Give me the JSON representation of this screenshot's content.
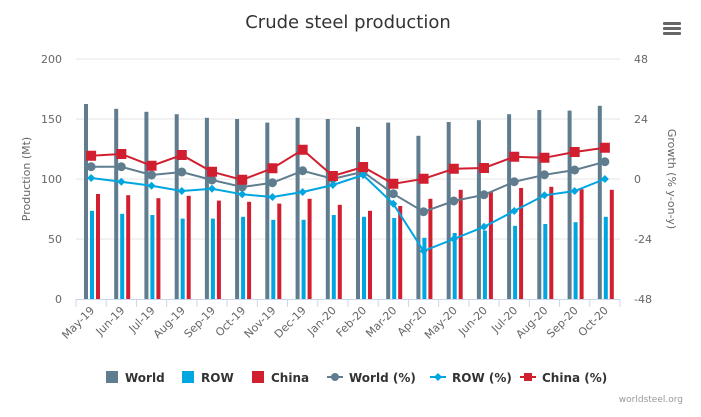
{
  "chart_data": {
    "type": "bar",
    "title": "Crude steel production",
    "xlabel": "",
    "ylabel": "Production (Mt)",
    "y2label": "Growth (% y-on-y)",
    "ylim": [
      0,
      200
    ],
    "y2lim": [
      -48,
      48
    ],
    "yticks": [
      "0",
      "50",
      "100",
      "150",
      "200"
    ],
    "y2ticks": [
      "-48",
      "-24",
      "0",
      "24",
      "48"
    ],
    "grid": true,
    "legend_position": "bottom",
    "categories": [
      "May-19",
      "Jun-19",
      "Jul-19",
      "Aug-19",
      "Sep-19",
      "Oct-19",
      "Nov-19",
      "Dec-19",
      "Jan-20",
      "Feb-20",
      "Mar-20",
      "Apr-20",
      "May-20",
      "Jun-20",
      "Jul-20",
      "Aug-20",
      "Sep-20",
      "Oct-20"
    ],
    "series": [
      {
        "name": "World",
        "type": "bar",
        "axis": "left",
        "color": "#5f7d8e",
        "values": [
          162.5,
          158.5,
          156,
          154,
          151,
          150,
          147,
          151,
          150,
          143.5,
          147,
          136,
          147.5,
          149,
          154,
          157.5,
          157,
          161
        ]
      },
      {
        "name": "ROW",
        "type": "bar",
        "axis": "left",
        "color": "#00a6e0",
        "values": [
          73.5,
          71,
          70,
          67,
          67,
          68.5,
          66,
          66,
          70,
          68.5,
          67.5,
          51,
          55,
          57,
          61,
          62.5,
          64,
          68.5
        ]
      },
      {
        "name": "China",
        "type": "bar",
        "axis": "left",
        "color": "#d21f30",
        "values": [
          87.5,
          86.5,
          84,
          86,
          82,
          81,
          79.5,
          83.5,
          78.5,
          73.5,
          77.5,
          83.5,
          91,
          89.5,
          92.5,
          93.5,
          91.5,
          91
        ]
      },
      {
        "name": "World (%)",
        "type": "line",
        "axis": "right",
        "color": "#5f7d8e",
        "marker": "circle",
        "values": [
          4.9,
          4.9,
          1.6,
          2.8,
          -0.4,
          -3.2,
          -1.5,
          3.3,
          0.1,
          2.9,
          -5.9,
          -13.1,
          -8.8,
          -6.3,
          -1.1,
          1.7,
          3.6,
          6.9
        ]
      },
      {
        "name": "ROW (%)",
        "type": "line",
        "axis": "right",
        "color": "#00a6e0",
        "marker": "diamond",
        "values": [
          0.4,
          -1.1,
          -2.7,
          -4.8,
          -3.9,
          -6.1,
          -7.2,
          -5.2,
          -2.4,
          1.6,
          -9.9,
          -28.8,
          -24.0,
          -19.1,
          -12.8,
          -6.5,
          -4.8,
          0.0
        ]
      },
      {
        "name": "China (%)",
        "type": "line",
        "axis": "right",
        "color": "#d21f30",
        "marker": "square",
        "values": [
          9.3,
          10.0,
          5.3,
          9.6,
          2.9,
          -0.3,
          4.3,
          11.7,
          1.2,
          4.8,
          -1.9,
          0.1,
          4.1,
          4.4,
          8.9,
          8.5,
          10.8,
          12.5
        ]
      }
    ]
  },
  "ui": {
    "menu_icon": "hamburger-menu-icon",
    "credit": "worldsteel.org"
  },
  "colors": {
    "grid": "#e6e6e6",
    "axis": "#ccd6eb",
    "text": "#333333",
    "tick_text": "#666666"
  }
}
